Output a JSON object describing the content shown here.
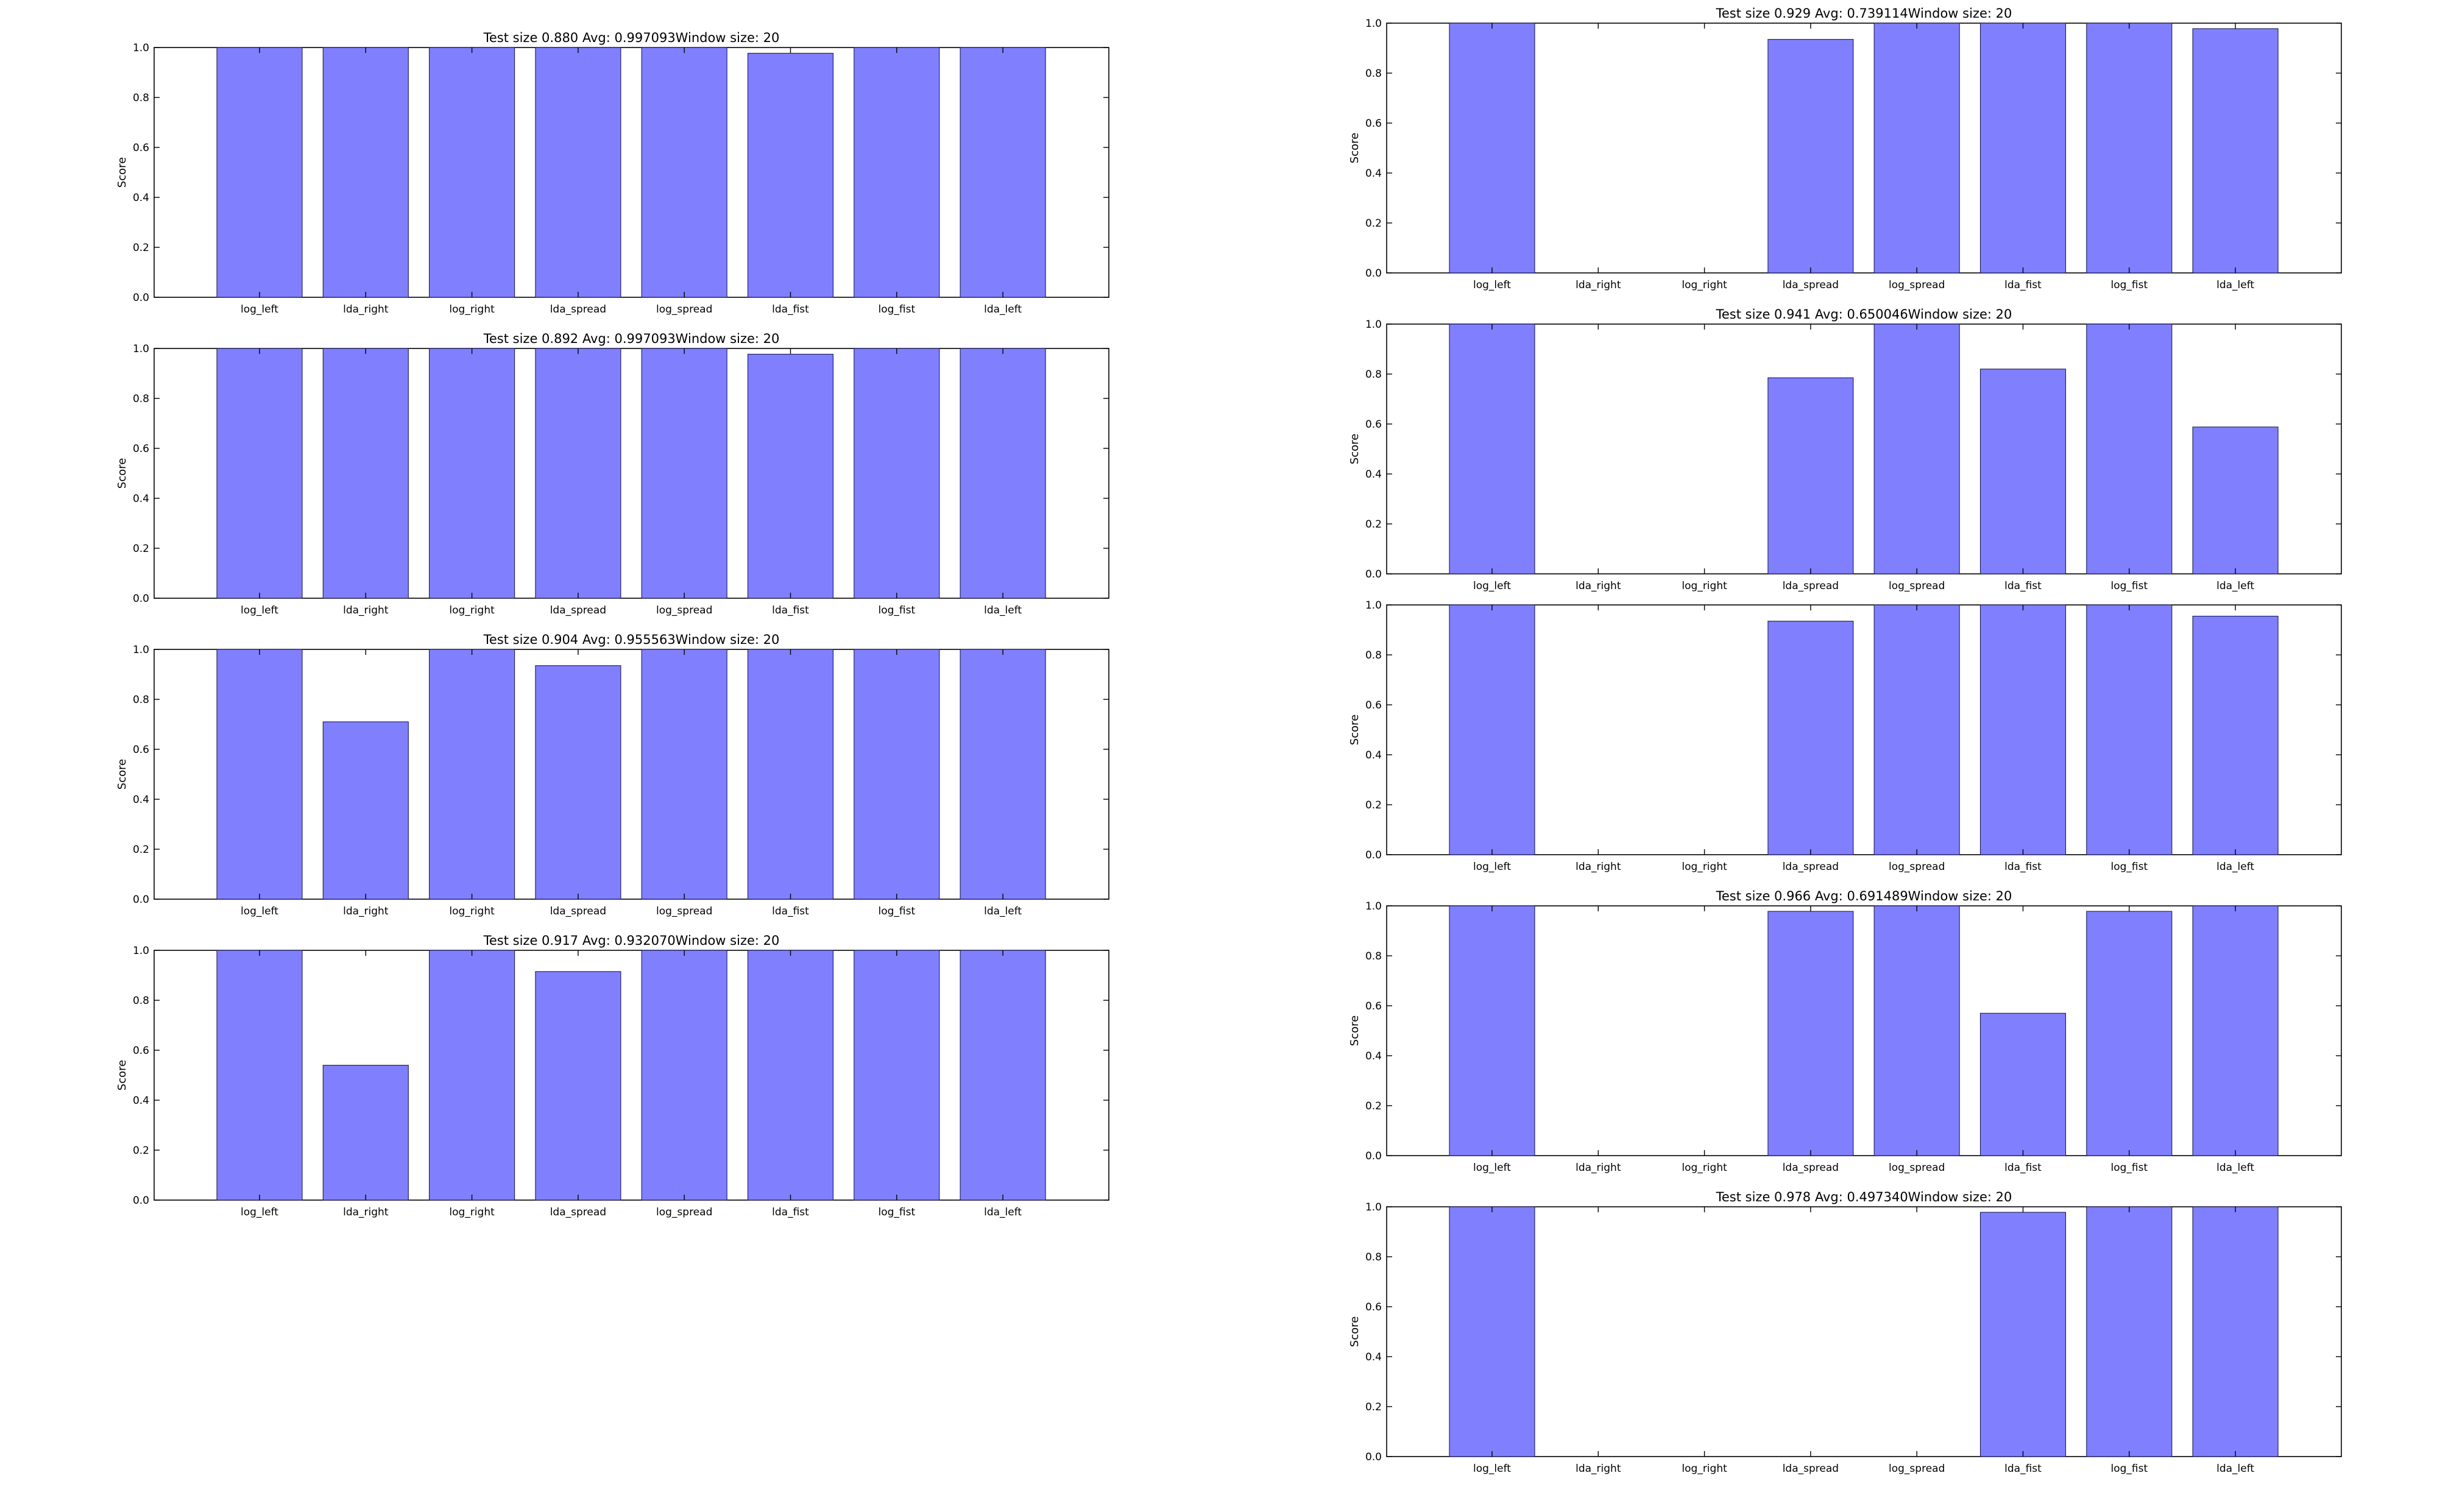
{
  "style": {
    "bar_color": "#8080ff",
    "bar_edge": "#1a1a55",
    "background": "#ffffff"
  },
  "chart_data": [
    {
      "type": "bar",
      "title": "Test size 0.880 Avg: 0.997093Window size: 20",
      "ylabel": "Score",
      "categories": [
        "log_left",
        "lda_right",
        "log_right",
        "lda_spread",
        "log_spread",
        "lda_fist",
        "log_fist",
        "lda_left"
      ],
      "values": [
        1.0,
        1.0,
        1.0,
        1.0,
        1.0,
        0.977,
        1.0,
        1.0
      ],
      "ylim": [
        0,
        1.0
      ],
      "yticks": [
        "0.0",
        "0.2",
        "0.4",
        "0.6",
        "0.8",
        "1.0"
      ]
    },
    {
      "type": "bar",
      "title": "Test size 0.892 Avg: 0.997093Window size: 20",
      "ylabel": "Score",
      "categories": [
        "log_left",
        "lda_right",
        "log_right",
        "lda_spread",
        "log_spread",
        "lda_fist",
        "log_fist",
        "lda_left"
      ],
      "values": [
        1.0,
        1.0,
        1.0,
        1.0,
        1.0,
        0.977,
        1.0,
        1.0
      ],
      "ylim": [
        0,
        1.0
      ],
      "yticks": [
        "0.0",
        "0.2",
        "0.4",
        "0.6",
        "0.8",
        "1.0"
      ]
    },
    {
      "type": "bar",
      "title": "Test size 0.904 Avg: 0.955563Window size: 20",
      "ylabel": "Score",
      "categories": [
        "log_left",
        "lda_right",
        "log_right",
        "lda_spread",
        "log_spread",
        "lda_fist",
        "log_fist",
        "lda_left"
      ],
      "values": [
        1.0,
        0.71,
        1.0,
        0.935,
        1.0,
        1.0,
        1.0,
        1.0
      ],
      "ylim": [
        0,
        1.0
      ],
      "yticks": [
        "0.0",
        "0.2",
        "0.4",
        "0.6",
        "0.8",
        "1.0"
      ]
    },
    {
      "type": "bar",
      "title": "Test size 0.917 Avg: 0.932070Window size: 20",
      "ylabel": "Score",
      "categories": [
        "log_left",
        "lda_right",
        "log_right",
        "lda_spread",
        "log_spread",
        "lda_fist",
        "log_fist",
        "lda_left"
      ],
      "values": [
        1.0,
        0.54,
        1.0,
        0.915,
        1.0,
        1.0,
        1.0,
        1.0
      ],
      "ylim": [
        0,
        1.0
      ],
      "yticks": [
        "0.0",
        "0.2",
        "0.4",
        "0.6",
        "0.8",
        "1.0"
      ]
    },
    {
      "type": "bar",
      "title": "Test size 0.929 Avg: 0.739114Window size: 20",
      "ylabel": "Score",
      "categories": [
        "log_left",
        "lda_right",
        "log_right",
        "lda_spread",
        "log_spread",
        "lda_fist",
        "log_fist",
        "lda_left"
      ],
      "values": [
        1.0,
        0.0,
        0.0,
        0.935,
        1.0,
        1.0,
        1.0,
        0.978
      ],
      "ylim": [
        0,
        1.0
      ],
      "yticks": [
        "0.0",
        "0.2",
        "0.4",
        "0.6",
        "0.8",
        "1.0"
      ]
    },
    {
      "type": "bar",
      "title": "Test size 0.941 Avg: 0.650046Window size: 20",
      "ylabel": "Score",
      "categories": [
        "log_left",
        "lda_right",
        "log_right",
        "lda_spread",
        "log_spread",
        "lda_fist",
        "log_fist",
        "lda_left"
      ],
      "values": [
        1.0,
        0.0,
        0.0,
        0.785,
        1.0,
        0.82,
        1.0,
        0.588
      ],
      "ylim": [
        0,
        1.0
      ],
      "yticks": [
        "0.0",
        "0.2",
        "0.4",
        "0.6",
        "0.8",
        "1.0"
      ]
    },
    {
      "type": "bar",
      "title": "",
      "ylabel": "Score",
      "categories": [
        "log_left",
        "lda_right",
        "log_right",
        "lda_spread",
        "log_spread",
        "lda_fist",
        "log_fist",
        "lda_left"
      ],
      "values": [
        1.0,
        0.0,
        0.0,
        0.935,
        1.0,
        1.0,
        1.0,
        0.955
      ],
      "ylim": [
        0,
        1.0
      ],
      "yticks": [
        "0.0",
        "0.2",
        "0.4",
        "0.6",
        "0.8",
        "1.0"
      ]
    },
    {
      "type": "bar",
      "title": "Test size 0.966 Avg: 0.691489Window size: 20",
      "ylabel": "Score",
      "categories": [
        "log_left",
        "lda_right",
        "log_right",
        "lda_spread",
        "log_spread",
        "lda_fist",
        "log_fist",
        "lda_left"
      ],
      "values": [
        1.0,
        0.0,
        0.0,
        0.978,
        1.0,
        0.57,
        0.978,
        1.0
      ],
      "ylim": [
        0,
        1.0
      ],
      "yticks": [
        "0.0",
        "0.2",
        "0.4",
        "0.6",
        "0.8",
        "1.0"
      ]
    },
    {
      "type": "bar",
      "title": "Test size 0.978 Avg: 0.497340Window size: 20",
      "ylabel": "Score",
      "categories": [
        "log_left",
        "lda_right",
        "log_right",
        "lda_spread",
        "log_spread",
        "lda_fist",
        "log_fist",
        "lda_left"
      ],
      "values": [
        1.0,
        0.0,
        0.0,
        0.0,
        0.0,
        0.978,
        1.0,
        1.0
      ],
      "ylim": [
        0,
        1.0
      ],
      "yticks": [
        "0.0",
        "0.2",
        "0.4",
        "0.6",
        "0.8",
        "1.0"
      ]
    }
  ]
}
